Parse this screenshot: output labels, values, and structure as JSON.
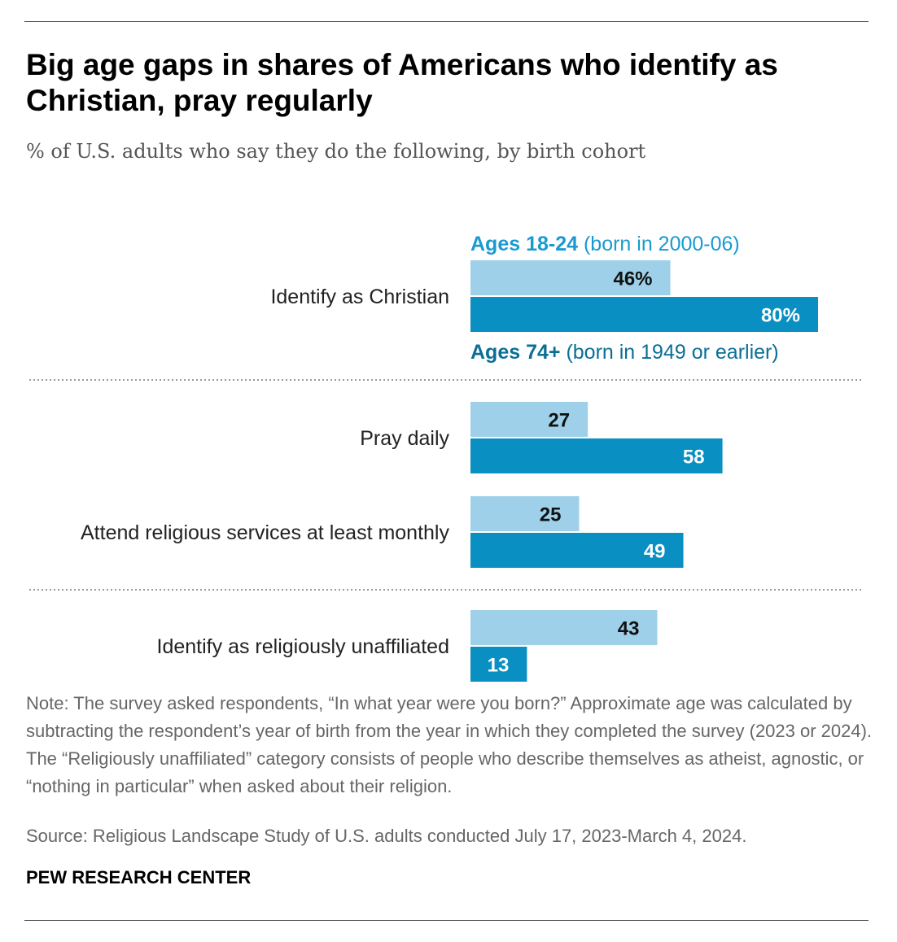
{
  "title": "Big age gaps in shares of Americans who identify as Christian, pray regularly",
  "subtitle": "% of U.S. adults who say they do the following, by birth cohort",
  "note": "Note: The survey asked respondents, “In what year were you born?” Approximate age was calculated by subtracting the respondent’s year of birth from the year in which they completed the survey (2023 or 2024). The “Religiously unaffiliated” category consists of people who describe themselves as atheist, agnostic, or “nothing in particular” when asked about their religion.",
  "source": "Source: Religious Landscape Study of U.S. adults conducted July 17, 2023-March 4, 2024.",
  "organization": "PEW RESEARCH CENTER",
  "colors": {
    "young": "#9ed0ea",
    "old": "#0a8fc3",
    "young_text": "#1a9ad0",
    "old_text": "#0a6f96",
    "divider": "#9a9a9a"
  },
  "chart_data": {
    "type": "bar",
    "orientation": "horizontal",
    "xlim": [
      0,
      80
    ],
    "categories": [
      "Identify as Christian",
      "Pray daily",
      "Attend religious services at least monthly",
      "Identify as religiously unaffiliated"
    ],
    "series": [
      {
        "name": "Ages 18-24",
        "name_detail": "(born in 2000-06)",
        "values": [
          46,
          27,
          25,
          43
        ],
        "labels": [
          "46%",
          "27",
          "25",
          "43"
        ]
      },
      {
        "name": "Ages 74+",
        "name_detail": "(born in 1949 or earlier)",
        "values": [
          80,
          58,
          49,
          13
        ],
        "labels": [
          "80%",
          "58",
          "49",
          "13"
        ]
      }
    ],
    "legend": "inline-direct-labels"
  }
}
